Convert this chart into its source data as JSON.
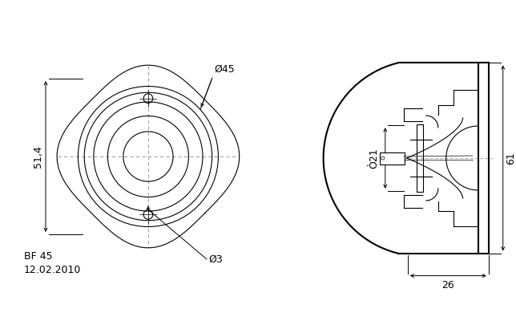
{
  "bg_color": "#ffffff",
  "lc": "#000000",
  "thin_lw": 0.8,
  "thick_lw": 1.5,
  "dim_lw": 0.7,
  "dash_lw": 0.5,
  "label_51_4": "51,4",
  "label_45": "Ø45",
  "label_3": "Ø3",
  "label_21": "Ò21",
  "label_61": "61",
  "label_26": "26",
  "label_bf45": "BF 45",
  "label_date": "12.02.2010"
}
